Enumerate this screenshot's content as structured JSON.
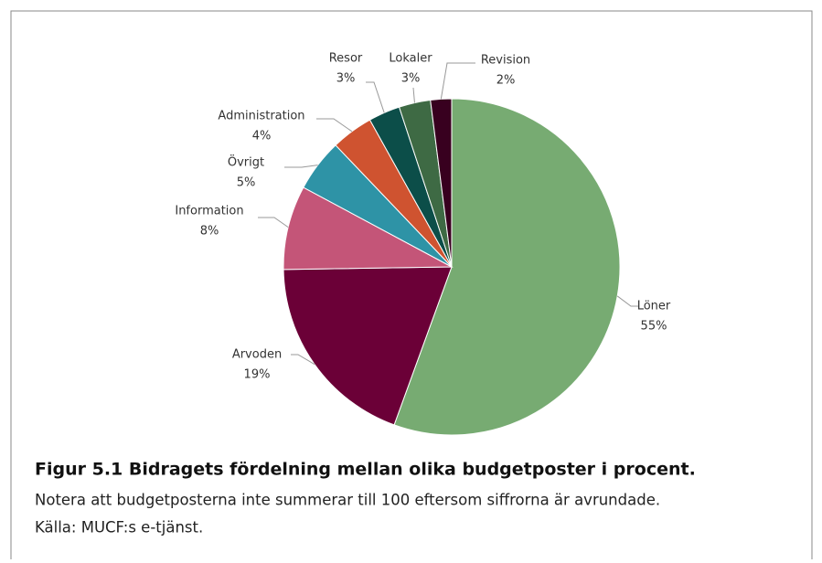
{
  "chart_data": {
    "type": "pie",
    "categories": [
      "Löner",
      "Arvoden",
      "Information",
      "Övrigt",
      "Administration",
      "Resor",
      "Lokaler",
      "Revision"
    ],
    "values": [
      55,
      19,
      8,
      5,
      4,
      3,
      3,
      2
    ],
    "value_labels": [
      "55%",
      "19%",
      "8%",
      "5%",
      "4%",
      "3%",
      "3%",
      "2%"
    ],
    "colors": [
      "#77ab72",
      "#6b0037",
      "#c45578",
      "#2e93a6",
      "#cf5330",
      "#0c4e49",
      "#3e6a44",
      "#38001f"
    ]
  },
  "caption": {
    "title": "Figur 5.1 Bidragets fördelning mellan olika budgetposter i procent.",
    "note": "Notera att budgetposterna inte summerar till 100 eftersom siffrorna är avrundade.",
    "source": "Källa: MUCF:s e-tjänst."
  }
}
